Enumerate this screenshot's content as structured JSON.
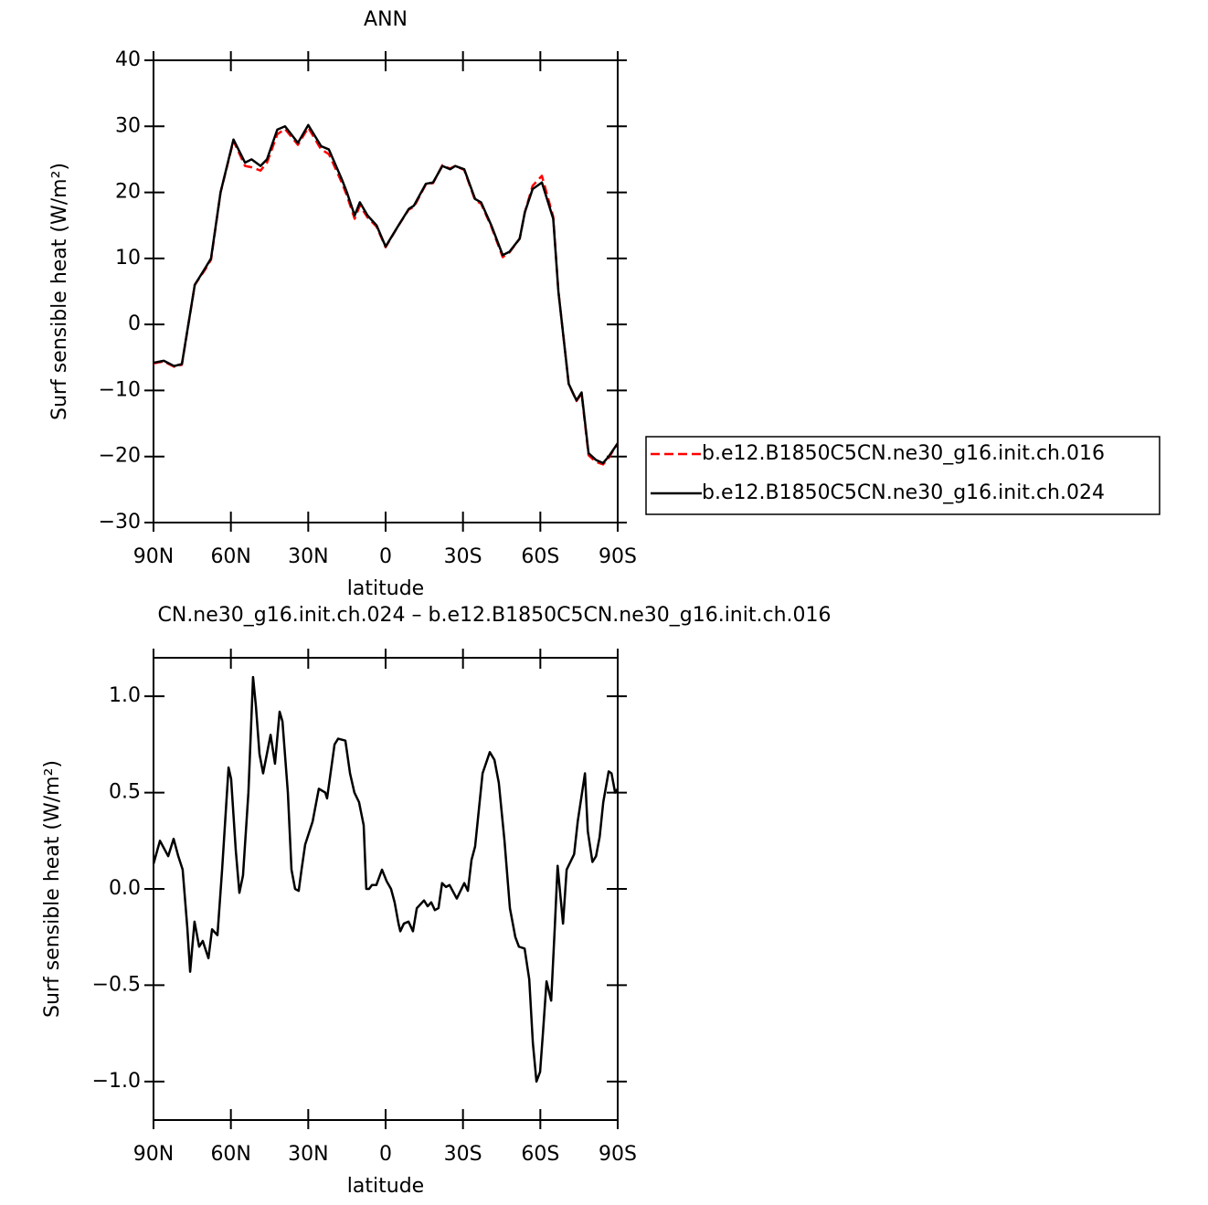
{
  "chart_data": [
    {
      "type": "line",
      "title": "ANN",
      "xlabel": "latitude",
      "ylabel": "Surf sensible heat (W/m²)",
      "xlim": [
        90,
        -90
      ],
      "ylim": [
        -30,
        40
      ],
      "xticks": [
        {
          "value": 90,
          "label": "90N"
        },
        {
          "value": 60,
          "label": "60N"
        },
        {
          "value": 30,
          "label": "30N"
        },
        0,
        {
          "value": -30,
          "label": "30S"
        },
        {
          "value": -60,
          "label": "60S"
        },
        {
          "value": -90,
          "label": "90S"
        }
      ],
      "yticks": [
        {
          "value": -30,
          "label": "−30"
        },
        {
          "value": -20,
          "label": "−20"
        },
        {
          "value": -10,
          "label": "−10"
        },
        0,
        10,
        20,
        30,
        40
      ],
      "x": [
        90,
        86,
        82,
        79,
        74,
        70,
        67.7,
        64,
        59,
        54.5,
        52,
        48.5,
        46,
        42,
        39,
        34,
        30,
        25,
        22,
        17,
        15,
        12,
        10,
        7,
        3.5,
        0,
        -5,
        -9,
        -11,
        -15.6,
        -18.4,
        -22,
        -25,
        -27,
        -30.5,
        -34.7,
        -37,
        -41,
        -45.4,
        -48,
        -52,
        -54,
        -57,
        -60.6,
        -65,
        -67,
        -71,
        -74,
        -76,
        -78.7,
        -81.5,
        -84.3,
        -86.5,
        -90
      ],
      "series": [
        {
          "name": "b.e12.B1850C5CN.ne30_g16.init.ch.016",
          "color": "#ff0000",
          "dash": true,
          "values": [
            -5.9,
            -5.6,
            -6.4,
            -6.1,
            6,
            8.3,
            9.8,
            20,
            27.8,
            24,
            23.8,
            23.3,
            24.5,
            28.8,
            29.6,
            27.2,
            29.8,
            26.5,
            25.8,
            21.5,
            19.5,
            16,
            18,
            16.2,
            14.8,
            11.7,
            15,
            17.4,
            17.8,
            21.2,
            21.4,
            24.1,
            23.6,
            24,
            23.4,
            18.8,
            18.3,
            14.8,
            10.2,
            10.9,
            13,
            17,
            21,
            22.5,
            16.3,
            5,
            -9,
            -11.6,
            -10.5,
            -19.8,
            -20.8,
            -21.2,
            -20.2,
            -18
          ]
        },
        {
          "name": "b.e12.B1850C5CN.ne30_g16.init.ch.024",
          "color": "#000000",
          "dash": false,
          "values": [
            -5.8,
            -5.5,
            -6.3,
            -6.0,
            6,
            8.5,
            10,
            20,
            28,
            24.5,
            25,
            24,
            25,
            29.5,
            30,
            27.5,
            30.2,
            27,
            26.5,
            22,
            20,
            16.5,
            18.5,
            16.5,
            15,
            11.8,
            15,
            17.5,
            18,
            21.3,
            21.5,
            24,
            23.5,
            24,
            23.5,
            19,
            18.5,
            15,
            10.5,
            11,
            13,
            17,
            20.5,
            21.5,
            16,
            5,
            -9,
            -11.5,
            -10.3,
            -19.5,
            -20.5,
            -21,
            -20,
            -18
          ]
        }
      ]
    },
    {
      "type": "line",
      "title": "CN.ne30_g16.init.ch.024 – b.e12.B1850C5CN.ne30_g16.init.ch.016",
      "xlabel": "latitude",
      "ylabel": "Surf sensible heat (W/m²)",
      "xlim": [
        90,
        -90
      ],
      "ylim": [
        -1.2,
        1.2
      ],
      "xticks": [
        {
          "value": 90,
          "label": "90N"
        },
        {
          "value": 60,
          "label": "60N"
        },
        {
          "value": 30,
          "label": "30N"
        },
        0,
        {
          "value": -30,
          "label": "30S"
        },
        {
          "value": -60,
          "label": "60S"
        },
        {
          "value": -90,
          "label": "90S"
        }
      ],
      "yticks": [
        {
          "value": -1.0,
          "label": "−1.0"
        },
        {
          "value": -0.5,
          "label": "−0.5"
        },
        {
          "value": 0,
          "label": "0.0"
        },
        0.5,
        {
          "value": 1.0,
          "label": "1.0"
        }
      ],
      "color": "#000000",
      "x": [
        90,
        87.5,
        84.3,
        82.2,
        80.4,
        78.7,
        76.9,
        75.8,
        74.1,
        72.3,
        70.9,
        68.7,
        67.3,
        65.2,
        63.4,
        60.9,
        59.9,
        58.1,
        56.7,
        55.3,
        53.2,
        51.4,
        50.3,
        48.9,
        47.5,
        44.6,
        42.9,
        41.1,
        40.0,
        37.9,
        36.5,
        35.1,
        33.7,
        32.6,
        31.2,
        28.3,
        25.9,
        23.4,
        22.7,
        19.8,
        18.4,
        15.6,
        13.8,
        12.1,
        10.3,
        8.5,
        7.5,
        6.4,
        5.3,
        3.6,
        1.4,
        -0.4,
        -2.1,
        -3.5,
        -5.0,
        -5.7,
        -7.1,
        -8.9,
        -10.6,
        -12.1,
        -14.9,
        -16.3,
        -17.7,
        -19.1,
        -20.5,
        -21.9,
        -23.4,
        -24.8,
        -27.6,
        -30.5,
        -31.9,
        -33.3,
        -34.7,
        -37.6,
        -40.4,
        -42.2,
        -43.9,
        -46.1,
        -48.2,
        -50.3,
        -51.7,
        -53.9,
        -55.7,
        -57.1,
        -58.5,
        -59.9,
        -61.0,
        -62.4,
        -64.2,
        -65.6,
        -66.7,
        -68.8,
        -70.2,
        -73.1,
        -74.5,
        -77.3,
        -78.4,
        -80.2,
        -81.6,
        -83.0,
        -84.4,
        -86.5,
        -87.6,
        -89.0,
        -90
      ],
      "values": [
        0.13,
        0.25,
        0.17,
        0.26,
        0.17,
        0.1,
        -0.2,
        -0.43,
        -0.17,
        -0.3,
        -0.27,
        -0.36,
        -0.21,
        -0.24,
        0.1,
        0.63,
        0.57,
        0.2,
        -0.02,
        0.07,
        0.5,
        1.1,
        0.95,
        0.7,
        0.6,
        0.8,
        0.65,
        0.92,
        0.87,
        0.5,
        0.1,
        0.0,
        -0.01,
        0.1,
        0.23,
        0.35,
        0.52,
        0.5,
        0.47,
        0.75,
        0.78,
        0.77,
        0.6,
        0.5,
        0.45,
        0.33,
        0.0,
        0.0,
        0.02,
        0.02,
        0.1,
        0.04,
        0.0,
        -0.07,
        -0.18,
        -0.22,
        -0.18,
        -0.17,
        -0.22,
        -0.1,
        -0.06,
        -0.09,
        -0.07,
        -0.11,
        -0.1,
        0.03,
        0.01,
        0.02,
        -0.05,
        0.03,
        -0.01,
        0.15,
        0.22,
        0.6,
        0.71,
        0.67,
        0.55,
        0.25,
        -0.1,
        -0.25,
        -0.3,
        -0.31,
        -0.47,
        -0.8,
        -1.0,
        -0.95,
        -0.75,
        -0.48,
        -0.58,
        -0.2,
        0.12,
        -0.18,
        0.1,
        0.18,
        0.35,
        0.6,
        0.3,
        0.14,
        0.17,
        0.27,
        0.45,
        0.61,
        0.6,
        0.5,
        0.52
      ]
    }
  ]
}
